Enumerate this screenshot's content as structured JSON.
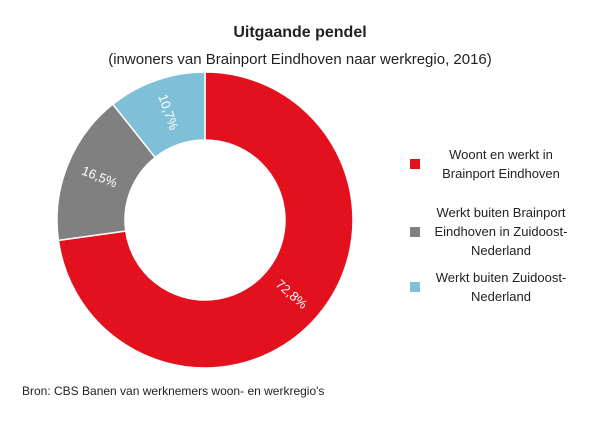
{
  "chart_data": {
    "type": "donut",
    "title": "Uitgaande pendel",
    "subtitle": "(inwoners van Brainport Eindhoven naar werkregio, 2016)",
    "categories": [
      "Woont en werkt in Brainport Eindhoven",
      "Werkt buiten Brainport Eindhoven in Zuidoost-Nederland",
      "Werkt buiten Zuidoost-Nederland"
    ],
    "values": [
      72.8,
      16.5,
      10.7
    ],
    "value_labels": [
      "72,8%",
      "16,5%",
      "10,7%"
    ],
    "colors": [
      "#e3101e",
      "#808080",
      "#7fc0d8"
    ],
    "source": "Bron: CBS Banen van werknemers woon- en werkregio's"
  }
}
